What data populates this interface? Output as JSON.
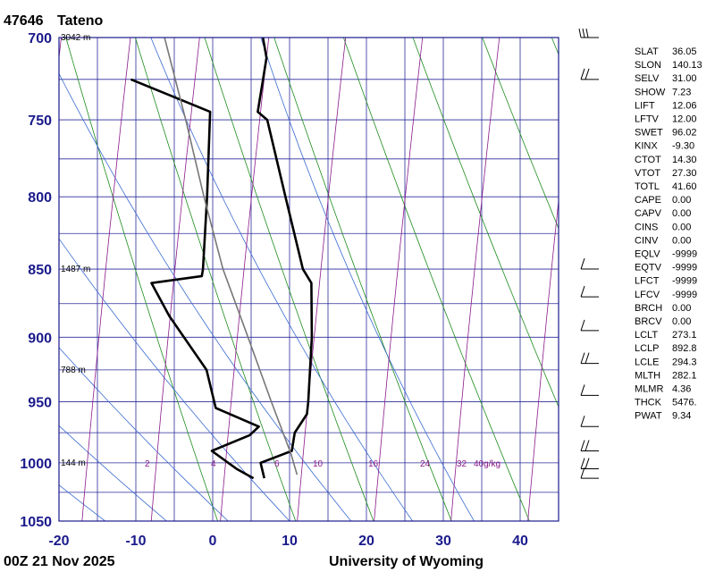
{
  "header": {
    "station_id": "47646",
    "station_name": "Tateno"
  },
  "footer": {
    "time": "00Z 21 Nov 2025",
    "source": "University of Wyoming"
  },
  "chart_data": {
    "type": "skew-t",
    "xlim": [
      -20,
      45
    ],
    "ylim": [
      1050,
      700
    ],
    "y_scale": "log",
    "x_ticks": [
      -20,
      -10,
      0,
      10,
      20,
      30,
      40
    ],
    "y_ticks": [
      700,
      750,
      800,
      850,
      900,
      950,
      1000,
      1050
    ],
    "height_labels": [
      {
        "p": 700,
        "label": "3042 m"
      },
      {
        "p": 850,
        "label": "1487 m"
      },
      {
        "p": 925,
        "label": "788 m"
      },
      {
        "p": 1000,
        "label": "144 m"
      }
    ],
    "mixing_ratio_labels": [
      "2",
      "4",
      "6",
      "10",
      "16",
      "24",
      "32",
      "40g/kg"
    ],
    "series": [
      {
        "name": "Temperature",
        "color": "#000000",
        "points": [
          {
            "p": 1013,
            "t": 5.8
          },
          {
            "p": 1000,
            "t": 5.0
          },
          {
            "p": 990,
            "t": 8.8
          },
          {
            "p": 975,
            "t": 8.8
          },
          {
            "p": 960,
            "t": 10.0
          },
          {
            "p": 950,
            "t": 9.9
          },
          {
            "p": 900,
            "t": 9.0
          },
          {
            "p": 860,
            "t": 7.8
          },
          {
            "p": 850,
            "t": 6.4
          },
          {
            "p": 800,
            "t": 2.6
          },
          {
            "p": 750,
            "t": -1.4
          },
          {
            "p": 745,
            "t": -2.8
          },
          {
            "p": 725,
            "t": -2.8
          },
          {
            "p": 712,
            "t": -2.8
          },
          {
            "p": 700,
            "t": -3.7
          }
        ]
      },
      {
        "name": "Dewpoint",
        "color": "#000000",
        "points": [
          {
            "p": 1013,
            "t": 4.4
          },
          {
            "p": 1005,
            "t": 2.0
          },
          {
            "p": 990,
            "t": -1.6
          },
          {
            "p": 977,
            "t": 3.0
          },
          {
            "p": 970,
            "t": 4.0
          },
          {
            "p": 955,
            "t": -2.0
          },
          {
            "p": 925,
            "t": -4.0
          },
          {
            "p": 884,
            "t": -10.0
          },
          {
            "p": 860,
            "t": -13.0
          },
          {
            "p": 855,
            "t": -6.6
          },
          {
            "p": 850,
            "t": -6.6
          },
          {
            "p": 800,
            "t": -7.6
          },
          {
            "p": 745,
            "t": -9.0
          },
          {
            "p": 725,
            "t": -20.0
          }
        ]
      },
      {
        "name": "Parcel",
        "color": "#777777",
        "points": [
          {
            "p": 1010,
            "t": 10.0
          },
          {
            "p": 993,
            "t": 8.8
          },
          {
            "p": 950,
            "t": 5.1
          },
          {
            "p": 900,
            "t": 0.7
          },
          {
            "p": 850,
            "t": -4.0
          },
          {
            "p": 800,
            "t": -8.0
          },
          {
            "p": 750,
            "t": -12.0
          },
          {
            "p": 700,
            "t": -16.5
          }
        ]
      }
    ],
    "wind_barbs": [
      {
        "p": 700,
        "flags": "line3"
      },
      {
        "p": 725,
        "flags": "barb2"
      },
      {
        "p": 850,
        "flags": "barb1"
      },
      {
        "p": 870,
        "flags": "barb1"
      },
      {
        "p": 895,
        "flags": "barb1"
      },
      {
        "p": 920,
        "flags": "barb2"
      },
      {
        "p": 945,
        "flags": "barb1"
      },
      {
        "p": 970,
        "flags": "barb1"
      },
      {
        "p": 990,
        "flags": "barb2"
      },
      {
        "p": 1005,
        "flags": "barb2"
      },
      {
        "p": 1013,
        "flags": "barb1"
      }
    ],
    "indices": [
      {
        "name": "SLAT",
        "value": "36.05"
      },
      {
        "name": "SLON",
        "value": "140.13"
      },
      {
        "name": "SELV",
        "value": "31.00"
      },
      {
        "name": "SHOW",
        "value": "7.23"
      },
      {
        "name": "LIFT",
        "value": "12.06"
      },
      {
        "name": "LFTV",
        "value": "12.00"
      },
      {
        "name": "SWET",
        "value": "96.02"
      },
      {
        "name": "KINX",
        "value": "-9.30"
      },
      {
        "name": "CTOT",
        "value": "14.30"
      },
      {
        "name": "VTOT",
        "value": "27.30"
      },
      {
        "name": "TOTL",
        "value": "41.60"
      },
      {
        "name": "CAPE",
        "value": "0.00"
      },
      {
        "name": "CAPV",
        "value": "0.00"
      },
      {
        "name": "CINS",
        "value": "0.00"
      },
      {
        "name": "CINV",
        "value": "0.00"
      },
      {
        "name": "EQLV",
        "value": "-9999"
      },
      {
        "name": "EQTV",
        "value": "-9999"
      },
      {
        "name": "LFCT",
        "value": "-9999"
      },
      {
        "name": "LFCV",
        "value": "-9999"
      },
      {
        "name": "BRCH",
        "value": "0.00"
      },
      {
        "name": "BRCV",
        "value": "0.00"
      },
      {
        "name": "LCLT",
        "value": "273.1"
      },
      {
        "name": "LCLP",
        "value": "892.8"
      },
      {
        "name": "LCLE",
        "value": "294.3"
      },
      {
        "name": "MLTH",
        "value": "282.1"
      },
      {
        "name": "MLMR",
        "value": "4.36"
      },
      {
        "name": "THCK",
        "value": "5476."
      },
      {
        "name": "PWAT",
        "value": "9.34"
      }
    ]
  }
}
